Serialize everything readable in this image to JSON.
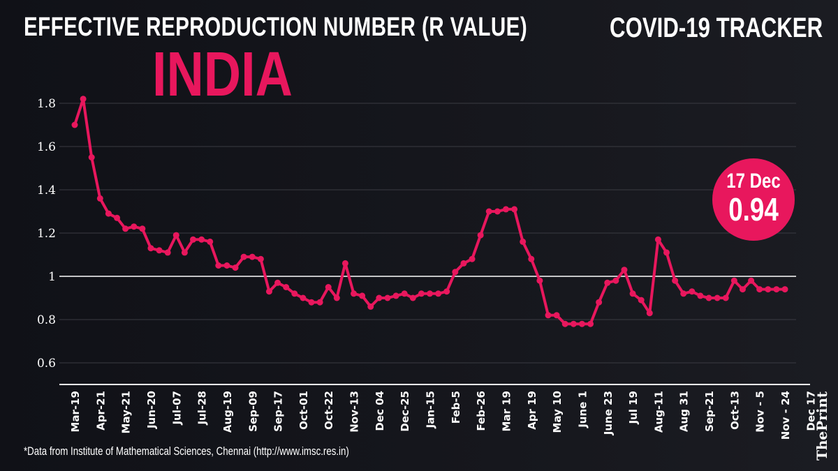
{
  "header": {
    "title": "EFFECTIVE REPRODUCTION NUMBER (R VALUE)",
    "tracker": "COVID-19 TRACKER",
    "country": "INDIA"
  },
  "badge": {
    "date": "17 Dec",
    "value": "0.94"
  },
  "footnote": "*Data from Institute of Mathematical Sciences, Chennai (http://www.imsc.res.in)",
  "brand": "ThePrint",
  "colors": {
    "line": "#e8175d",
    "background": "#121319",
    "reference_line": "#ffffff"
  },
  "chart_data": {
    "type": "line",
    "xlabel": "",
    "ylabel": "",
    "ylim": [
      0.5,
      1.85
    ],
    "yticks": [
      "0.6",
      "0.8",
      "1",
      "1.2",
      "1.4",
      "1.6",
      "1.8"
    ],
    "ytick_values": [
      0.6,
      0.8,
      1.0,
      1.2,
      1.4,
      1.6,
      1.8
    ],
    "reference_line": 1.0,
    "grid": true,
    "tick_labels": [
      "Mar-19",
      "Apr-21",
      "May-21",
      "Jun-20",
      "Jul-07",
      "Jul-28",
      "Aug-19",
      "Sep-09",
      "Sep-17",
      "Oct-01",
      "Oct-22",
      "Nov-13",
      "Dec 04",
      "Dec-25",
      "Jan-15",
      "Feb-5",
      "Feb-26",
      "Mar 19",
      "Apr 19",
      "May 10",
      "June 1",
      "June 23",
      "Jul 19",
      "Aug-11",
      "Aug 31",
      "Sep-21",
      "Oct-13",
      "Nov - 5",
      "Nov - 24",
      "Dec 17"
    ],
    "tick_every": 3,
    "values": [
      1.7,
      1.82,
      1.55,
      1.36,
      1.29,
      1.27,
      1.22,
      1.23,
      1.22,
      1.13,
      1.12,
      1.11,
      1.19,
      1.11,
      1.17,
      1.17,
      1.16,
      1.05,
      1.05,
      1.04,
      1.09,
      1.09,
      1.08,
      0.93,
      0.97,
      0.95,
      0.92,
      0.9,
      0.88,
      0.88,
      0.95,
      0.9,
      1.06,
      0.92,
      0.91,
      0.86,
      0.9,
      0.9,
      0.91,
      0.92,
      0.9,
      0.92,
      0.92,
      0.92,
      0.93,
      1.02,
      1.06,
      1.08,
      1.19,
      1.3,
      1.3,
      1.31,
      1.31,
      1.16,
      1.08,
      0.98,
      0.82,
      0.82,
      0.78,
      0.78,
      0.78,
      0.78,
      0.88,
      0.97,
      0.98,
      1.03,
      0.92,
      0.89,
      0.83,
      1.17,
      1.11,
      0.98,
      0.92,
      0.93,
      0.91,
      0.9,
      0.9,
      0.9,
      0.98,
      0.94,
      0.98,
      0.94,
      0.94,
      0.94,
      0.94
    ]
  }
}
